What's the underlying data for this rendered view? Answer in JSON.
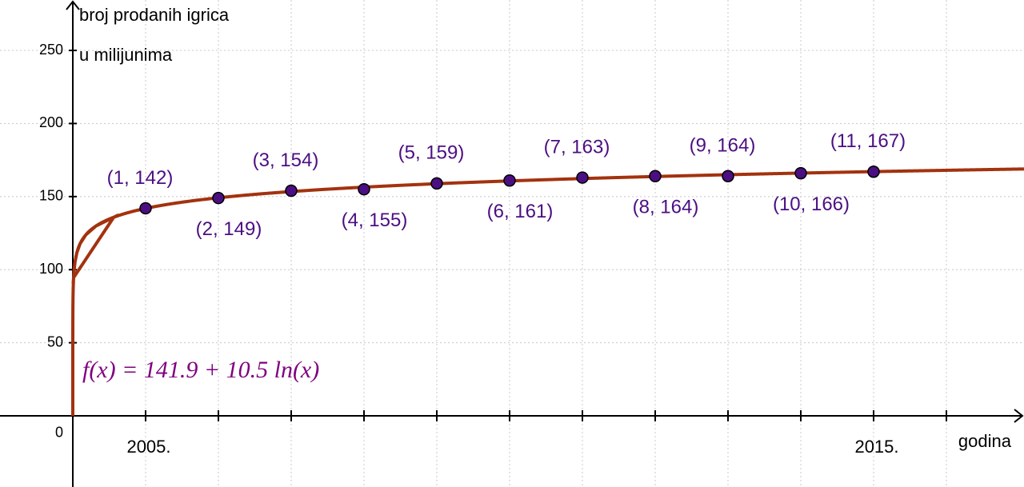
{
  "chart_data": {
    "type": "scatter",
    "xlabel": "godina",
    "ylabel": [
      "broj prodanih igrica",
      "u milijunima"
    ],
    "x": [
      1,
      2,
      3,
      4,
      5,
      6,
      7,
      8,
      9,
      10,
      11
    ],
    "series": [
      {
        "color": "#4b0f82",
        "values": [
          142,
          149,
          154,
          155,
          159,
          161,
          163,
          164,
          164,
          166,
          167
        ],
        "value_labels": [
          "(1, 142)",
          "(2, 149)",
          "(3, 154)",
          "(4, 155)",
          "(5, 159)",
          "(6, 161)",
          "(7, 163)",
          "(8, 164)",
          "(9, 164)",
          "(10, 166)",
          "(11, 167)"
        ]
      }
    ],
    "fit": {
      "label": "f(x) = 141.9 + 10.5 ln(x)",
      "a": 141.9,
      "b": 10.5,
      "color": "#a3320f"
    },
    "xlim": [
      -1,
      13.066
    ],
    "ylim": [
      -48.7,
      284.5
    ],
    "xticks": [
      {
        "value": 1,
        "label": "2005."
      },
      {
        "value": 11,
        "label": "2015."
      }
    ],
    "xminor": [
      2,
      3,
      4,
      5,
      6,
      7,
      8,
      9,
      10,
      12
    ],
    "yticks": [
      0,
      50,
      100,
      150,
      200,
      250
    ],
    "grid": true
  }
}
